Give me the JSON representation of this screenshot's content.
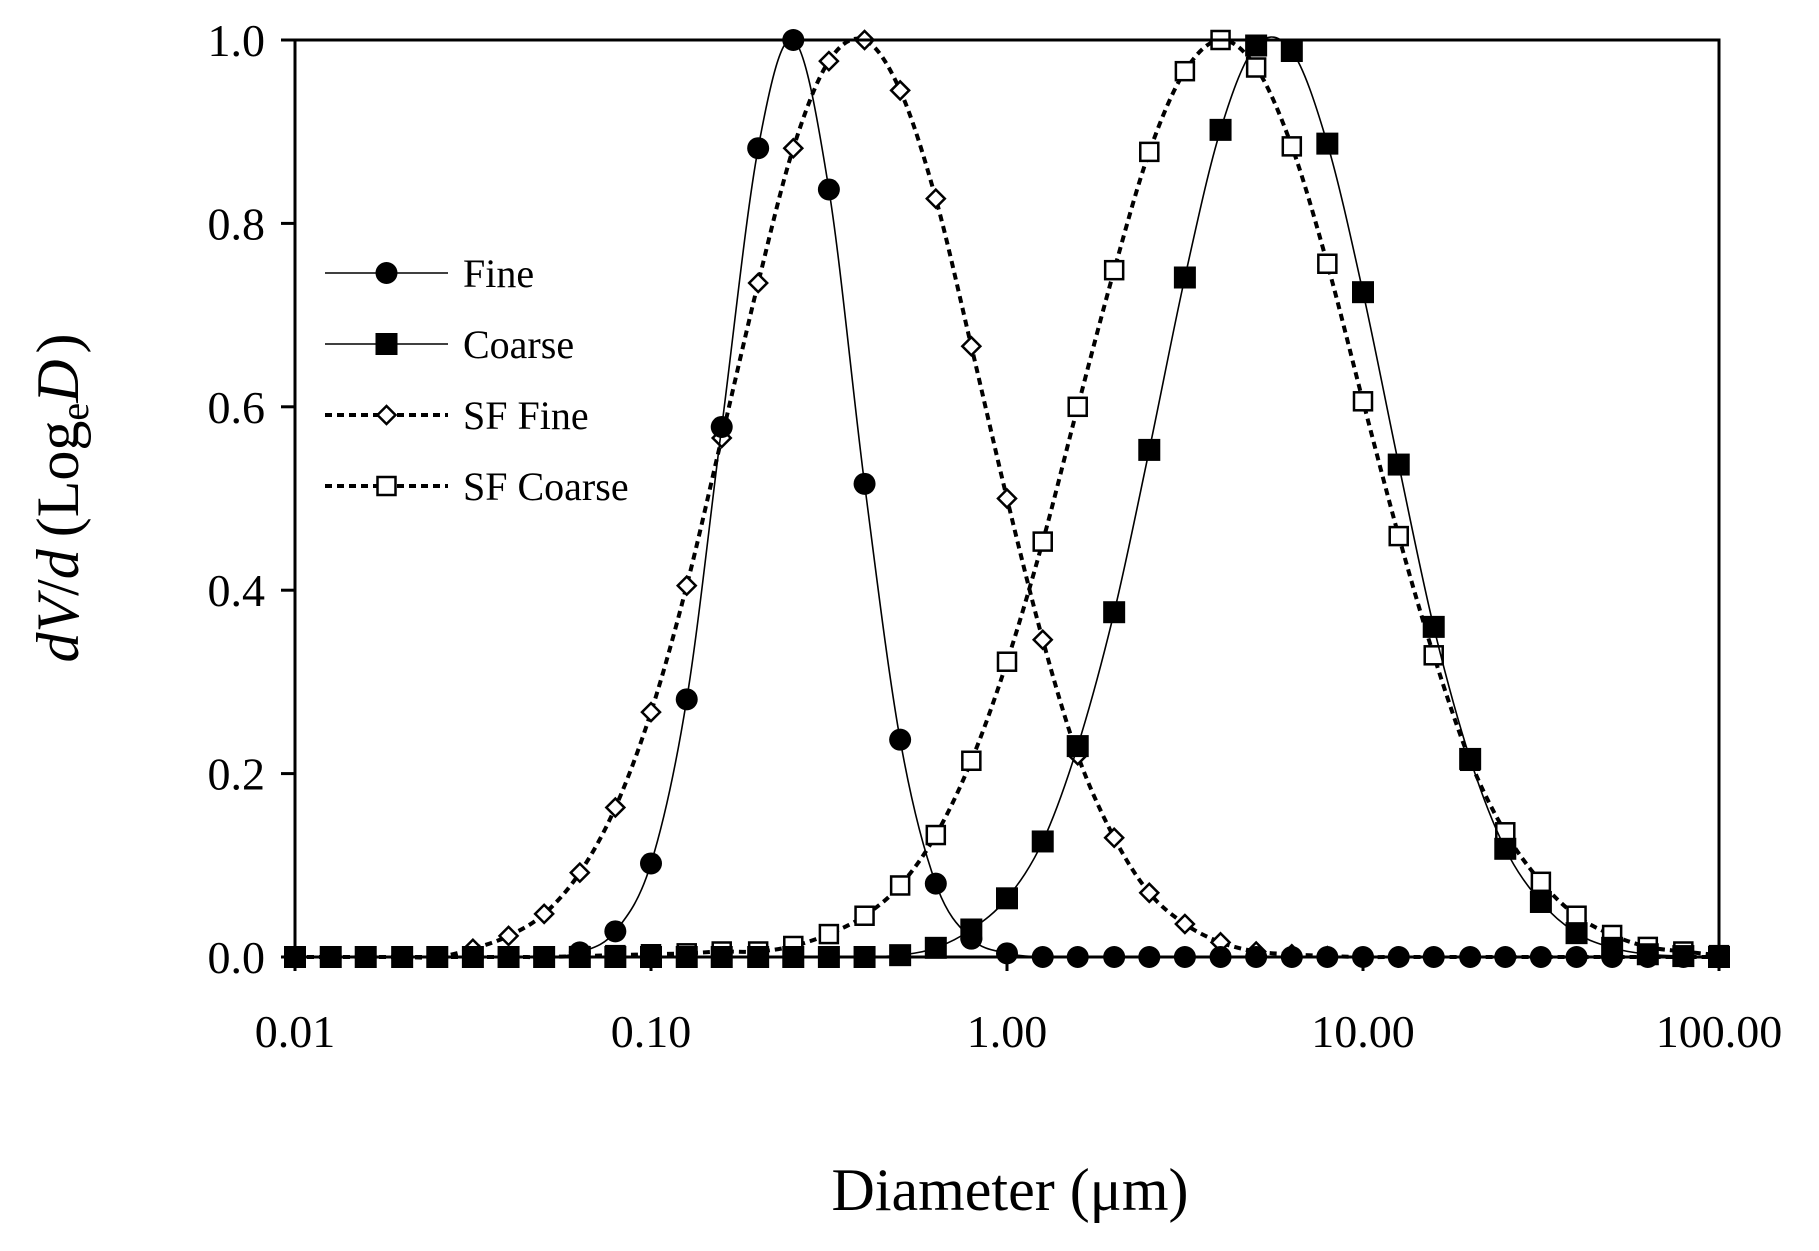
{
  "chart_data": {
    "type": "scatter",
    "title": "",
    "xlabel": "Diameter  (μm)",
    "ylabel_parts": {
      "dV": "dV",
      "slash": "/",
      "d": "d",
      "open": "(",
      "log": "Log",
      "sub": "e",
      "D": "D",
      "close": ")"
    },
    "xscale": "log",
    "xlim": [
      0.01,
      100
    ],
    "ylim": [
      0,
      1
    ],
    "x_ticks": [
      0.01,
      0.1,
      1,
      10,
      100
    ],
    "x_tick_labels": [
      "0.01",
      "0.10",
      "1.00",
      "10.00",
      "100.00"
    ],
    "y_ticks": [
      0,
      0.2,
      0.4,
      0.6,
      0.8,
      1.0
    ],
    "y_tick_labels": [
      "0.0",
      "0.2",
      "0.4",
      "0.6",
      "0.8",
      "1.0"
    ],
    "grid": false,
    "legend_position": "left",
    "x": [
      0.01,
      0.0126,
      0.0158,
      0.02,
      0.0251,
      0.0316,
      0.0398,
      0.0501,
      0.0631,
      0.0794,
      0.1,
      0.126,
      0.158,
      0.2,
      0.251,
      0.316,
      0.398,
      0.501,
      0.631,
      0.794,
      1.0,
      1.26,
      1.58,
      2.0,
      2.51,
      3.16,
      3.98,
      5.01,
      6.31,
      7.94,
      10.0,
      12.6,
      15.8,
      20.0,
      25.1,
      31.6,
      39.8,
      50.1,
      63.1,
      79.4,
      100
    ],
    "series": [
      {
        "name": "Fine",
        "marker": "filled-circle",
        "line": "solid",
        "values": [
          0,
          0,
          0,
          0,
          0,
          0,
          0,
          0,
          0.005,
          0.028,
          0.102,
          0.281,
          0.578,
          0.882,
          1.0,
          0.837,
          0.516,
          0.237,
          0.08,
          0.02,
          0.004,
          0,
          0,
          0,
          0,
          0,
          0,
          0,
          0,
          0,
          0,
          0,
          0,
          0,
          0,
          0,
          0,
          0,
          0,
          0,
          0
        ]
      },
      {
        "name": "Coarse",
        "marker": "filled-square",
        "line": "solid",
        "values": [
          0,
          0,
          0,
          0,
          0,
          0,
          0,
          0,
          0,
          0,
          0,
          0,
          0,
          0,
          0,
          0,
          0,
          0.002,
          0.01,
          0.03,
          0.064,
          0.126,
          0.23,
          0.376,
          0.553,
          0.741,
          0.902,
          0.994,
          0.988,
          0.887,
          0.725,
          0.537,
          0.36,
          0.216,
          0.118,
          0.06,
          0.026,
          0.01,
          0.003,
          0.001,
          0
        ]
      },
      {
        "name": "SF Fine",
        "marker": "open-diamond",
        "line": "dotted",
        "values": [
          0,
          0,
          0,
          0,
          0,
          0.009,
          0.023,
          0.047,
          0.092,
          0.163,
          0.267,
          0.405,
          0.566,
          0.735,
          0.882,
          0.977,
          1.0,
          0.945,
          0.827,
          0.666,
          0.5,
          0.346,
          0.22,
          0.13,
          0.07,
          0.036,
          0.016,
          0.006,
          0.003,
          0.001,
          0,
          0,
          0,
          0,
          0,
          0,
          0,
          0,
          0,
          0,
          0
        ]
      },
      {
        "name": "SF Coarse",
        "marker": "open-square",
        "line": "dotted",
        "values": [
          0,
          0,
          0,
          0,
          0,
          0,
          0,
          0,
          0.001,
          0.002,
          0.003,
          0.004,
          0.006,
          0.006,
          0.012,
          0.025,
          0.045,
          0.078,
          0.133,
          0.214,
          0.322,
          0.453,
          0.6,
          0.749,
          0.878,
          0.966,
          1.0,
          0.97,
          0.884,
          0.756,
          0.606,
          0.459,
          0.329,
          0.214,
          0.136,
          0.082,
          0.045,
          0.024,
          0.011,
          0.006,
          0.002
        ]
      }
    ]
  }
}
